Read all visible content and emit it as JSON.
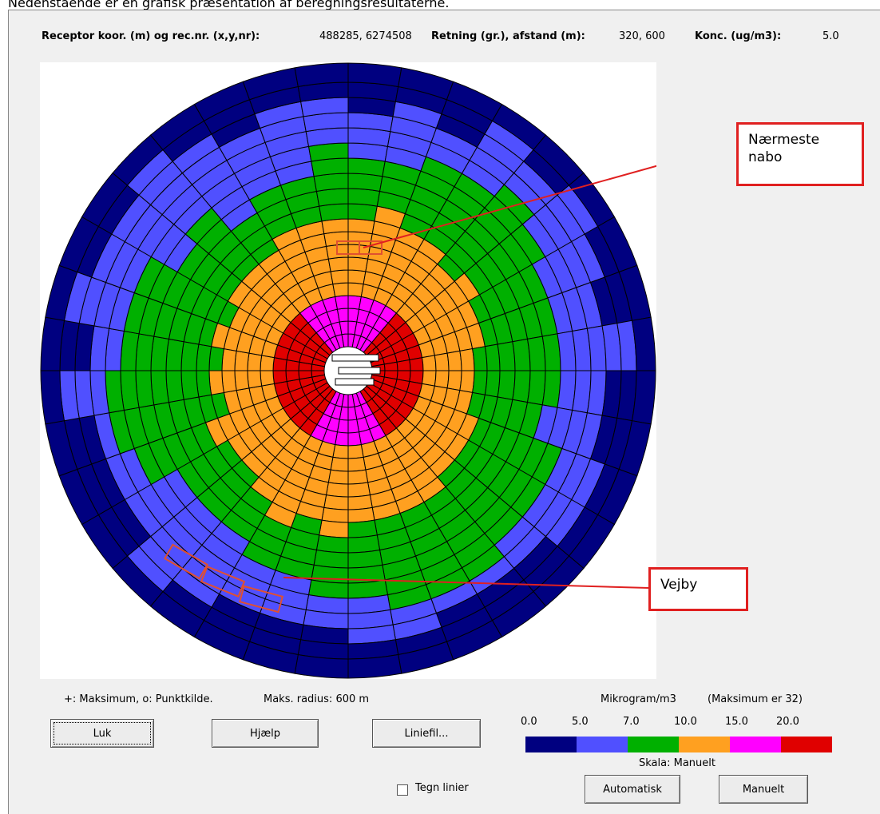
{
  "caption": "Nedenstående er en grafisk præsentation af beregningsresultaterne.",
  "header": {
    "receptor_label": "Receptor koor. (m) og rec.nr. (x,y,nr):",
    "receptor_value": "488285, 6274508",
    "direction_label": "Retning (gr.), afstand (m):",
    "direction_value": "320, 600",
    "conc_label": "Konc. (ug/m3):",
    "conc_value": "5.0"
  },
  "annotations": {
    "neighbour": "Nærmeste nabo",
    "village": "Vejby"
  },
  "footer": {
    "symbols": "+: Maksimum, o: Punktkilde.",
    "radius": "Maks. radius: 600 m"
  },
  "legend": {
    "title": "Mikrogram/m3",
    "note": "(Maksimum er 32)",
    "scale": "Skala: Manuelt",
    "items": [
      {
        "value": 0,
        "label": "0.0",
        "color": "#000080"
      },
      {
        "value": 5,
        "label": "5.0",
        "color": "#5050ff"
      },
      {
        "value": 7,
        "label": "7.0",
        "color": "#00b000"
      },
      {
        "value": 10,
        "label": "10.0",
        "color": "#ffa020"
      },
      {
        "value": 15,
        "label": "15.0",
        "color": "#ff00ff"
      },
      {
        "value": 20,
        "label": "20.0",
        "color": "#e00000"
      }
    ]
  },
  "buttons": {
    "close": "Luk",
    "help": "Hjælp",
    "linefile": "Liniefil...",
    "auto": "Automatisk",
    "manual": "Manuelt"
  },
  "checkbox": "Tegn linier"
}
